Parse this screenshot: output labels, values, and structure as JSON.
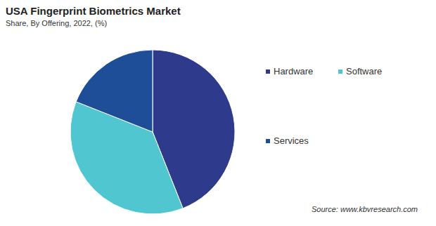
{
  "chart_data": {
    "type": "pie",
    "title": "USA Fingerprint Biometrics Market",
    "subtitle": "Share, By Offering, 2022, (%)",
    "categories": [
      "Hardware",
      "Software",
      "Services"
    ],
    "values": [
      44,
      37,
      19
    ],
    "colors": [
      "#2e3a8c",
      "#4fc6d0",
      "#1f4e99"
    ],
    "legend": "right",
    "source": "Source: www.kbvresearch.com"
  }
}
